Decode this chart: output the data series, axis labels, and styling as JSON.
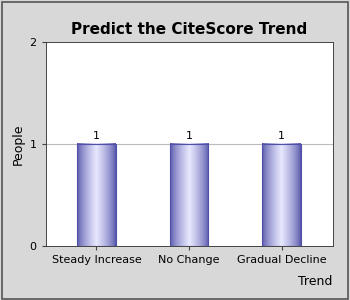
{
  "title": "Predict the CiteScore Trend",
  "categories": [
    "Steady Increase",
    "No Change",
    "Gradual Decline"
  ],
  "values": [
    1,
    1,
    1
  ],
  "xlabel": "Trend",
  "ylabel": "People",
  "ylim": [
    0,
    2
  ],
  "yticks": [
    0,
    1,
    2
  ],
  "bar_color_edge_dark": "#5050a8",
  "bar_color_center": "#e0e0ff",
  "bg_outer": "#d8d8d8",
  "bg_plot": "#ffffff",
  "title_fontsize": 11,
  "axis_fontsize": 9,
  "tick_fontsize": 8,
  "annotation_fontsize": 8,
  "bar_width": 0.42
}
